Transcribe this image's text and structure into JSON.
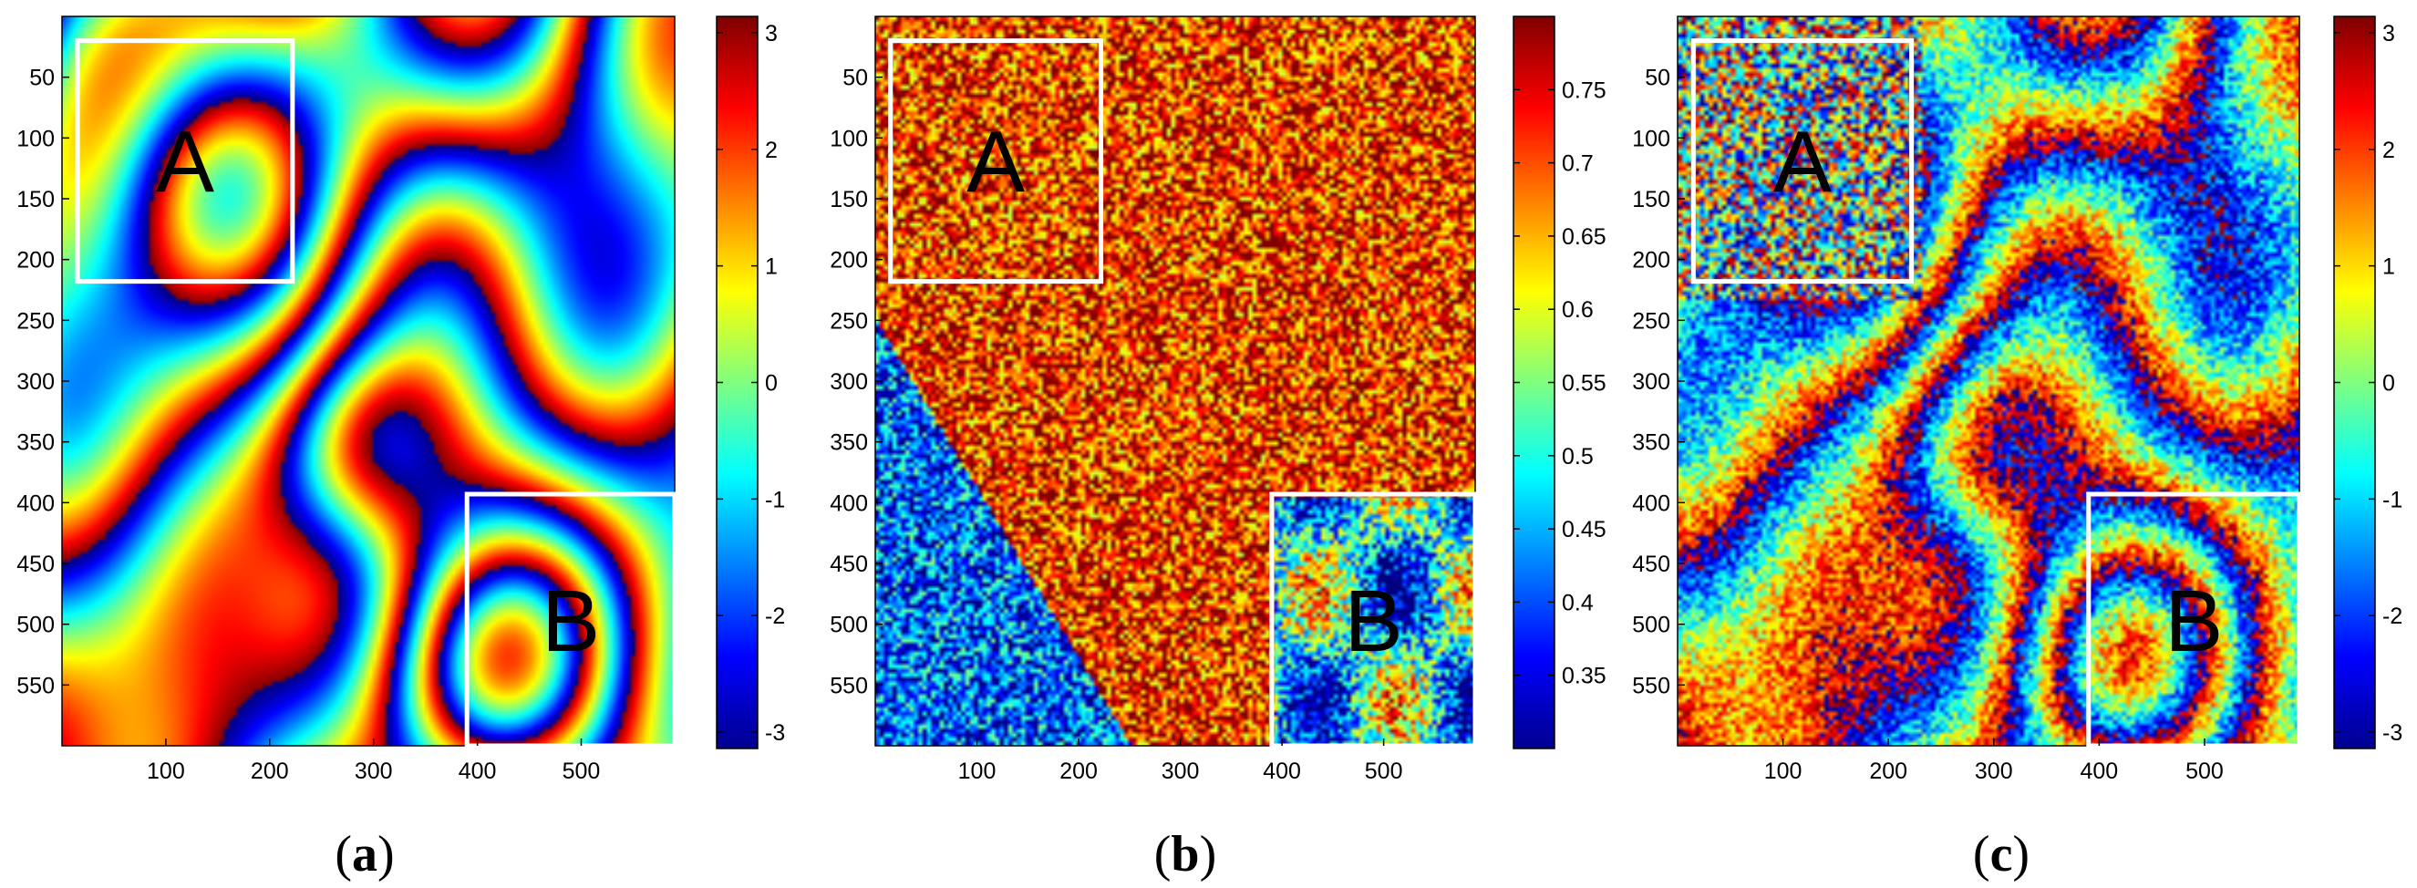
{
  "chart_data": [
    {
      "type": "heatmap",
      "panel": "a",
      "caption_open": "(",
      "caption_letter": "a",
      "caption_close": ")",
      "content": "interferometric phase fringes (simulated)",
      "x_ticks": [
        "100",
        "200",
        "300",
        "400",
        "500"
      ],
      "y_ticks": [
        "50",
        "100",
        "150",
        "200",
        "250",
        "300",
        "350",
        "400",
        "450",
        "500",
        "550"
      ],
      "xlim": [
        0,
        590
      ],
      "ylim": [
        0,
        600
      ],
      "colorbar_ticks": [
        "3",
        "2",
        "1",
        "0",
        "-1",
        "-2",
        "-3"
      ],
      "colorbar_range": [
        -3.14,
        3.14
      ],
      "regions": [
        {
          "label": "A",
          "x_range": [
            15,
            222
          ],
          "y_range": [
            20,
            218
          ]
        },
        {
          "label": "B",
          "x_range": [
            390,
            590
          ],
          "y_range": [
            393,
            600
          ]
        }
      ]
    },
    {
      "type": "heatmap",
      "panel": "b",
      "caption_open": "(",
      "caption_letter": "b",
      "caption_close": ")",
      "content": "coherence map",
      "x_ticks": [
        "100",
        "200",
        "300",
        "400",
        "500"
      ],
      "y_ticks": [
        "50",
        "100",
        "150",
        "200",
        "250",
        "300",
        "350",
        "400",
        "450",
        "500",
        "550"
      ],
      "xlim": [
        0,
        590
      ],
      "ylim": [
        0,
        600
      ],
      "colorbar_ticks": [
        "0.75",
        "0.7",
        "0.65",
        "0.6",
        "0.55",
        "0.5",
        "0.45",
        "0.4",
        "0.35"
      ],
      "colorbar_range": [
        0.3,
        0.8
      ],
      "regions": [
        {
          "label": "A",
          "x_range": [
            15,
            222
          ],
          "y_range": [
            20,
            218
          ]
        },
        {
          "label": "B",
          "x_range": [
            390,
            590
          ],
          "y_range": [
            393,
            600
          ]
        }
      ]
    },
    {
      "type": "heatmap",
      "panel": "c",
      "caption_open": "(",
      "caption_letter": "c",
      "caption_close": ")",
      "content": "noisy interferometric phase",
      "x_ticks": [
        "100",
        "200",
        "300",
        "400",
        "500"
      ],
      "y_ticks": [
        "50",
        "100",
        "150",
        "200",
        "250",
        "300",
        "350",
        "400",
        "450",
        "500",
        "550"
      ],
      "xlim": [
        0,
        590
      ],
      "ylim": [
        0,
        600
      ],
      "colorbar_ticks": [
        "3",
        "2",
        "1",
        "0",
        "-1",
        "-2",
        "-3"
      ],
      "colorbar_range": [
        -3.14,
        3.14
      ],
      "regions": [
        {
          "label": "A",
          "x_range": [
            15,
            222
          ],
          "y_range": [
            20,
            218
          ]
        },
        {
          "label": "B",
          "x_range": [
            390,
            590
          ],
          "y_range": [
            393,
            600
          ]
        }
      ]
    }
  ]
}
